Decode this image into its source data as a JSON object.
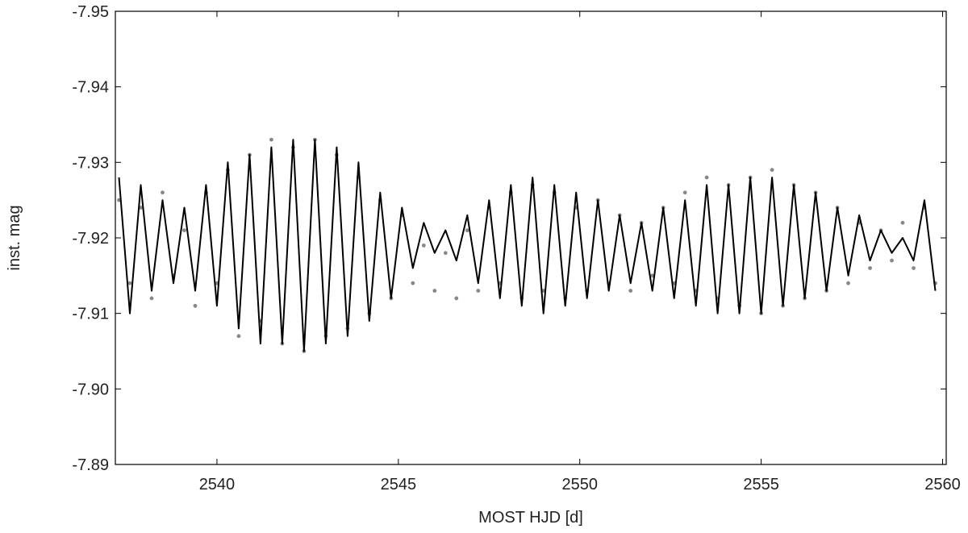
{
  "chart_data": {
    "type": "scatter",
    "xlabel": "MOST HJD [d]",
    "ylabel": "inst. mag",
    "xlim": [
      2537.2,
      2560.1
    ],
    "ylim": [
      -7.95,
      -7.89
    ],
    "y_inverted": true,
    "xticks": [
      2540,
      2545,
      2550,
      2555,
      2560
    ],
    "xtick_labels": [
      "2540",
      "2545",
      "2550",
      "2555",
      "2560"
    ],
    "yticks": [
      -7.95,
      -7.94,
      -7.93,
      -7.92,
      -7.91,
      -7.9,
      -7.89
    ],
    "ytick_labels": [
      "-7.95",
      "-7.94",
      "-7.93",
      "-7.92",
      "-7.91",
      "-7.90",
      "-7.89"
    ],
    "grid": false,
    "series": [
      {
        "kind": "photometry_points",
        "color": "#888888",
        "x": [
          2537.3,
          2537.6,
          2537.9,
          2538.2,
          2538.5,
          2538.8,
          2539.1,
          2539.4,
          2539.7,
          2540.0,
          2540.3,
          2540.6,
          2540.9,
          2541.2,
          2541.5,
          2541.8,
          2542.1,
          2542.4,
          2542.7,
          2543.0,
          2543.3,
          2543.6,
          2543.9,
          2544.2,
          2544.5,
          2544.8,
          2545.1,
          2545.4,
          2545.7,
          2546.0,
          2546.3,
          2546.6,
          2546.9,
          2547.2,
          2547.5,
          2547.8,
          2548.1,
          2548.4,
          2548.7,
          2549.0,
          2549.3,
          2549.6,
          2549.9,
          2550.2,
          2550.5,
          2550.8,
          2551.1,
          2551.4,
          2551.7,
          2552.0,
          2552.3,
          2552.6,
          2552.9,
          2553.2,
          2553.5,
          2553.8,
          2554.1,
          2554.4,
          2554.7,
          2555.0,
          2555.3,
          2555.6,
          2555.9,
          2556.2,
          2556.5,
          2556.8,
          2557.1,
          2557.4,
          2557.7,
          2558.0,
          2558.3,
          2558.6,
          2558.9,
          2559.2,
          2559.5,
          2559.8
        ],
        "y": [
          -7.925,
          -7.914,
          -7.924,
          -7.912,
          -7.926,
          -7.915,
          -7.921,
          -7.911,
          -7.926,
          -7.914,
          -7.929,
          -7.907,
          -7.931,
          -7.909,
          -7.933,
          -7.906,
          -7.932,
          -7.905,
          -7.933,
          -7.907,
          -7.931,
          -7.908,
          -7.928,
          -7.91,
          -7.925,
          -7.912,
          -7.923,
          -7.914,
          -7.919,
          -7.913,
          -7.918,
          -7.912,
          -7.921,
          -7.913,
          -7.924,
          -7.914,
          -7.926,
          -7.912,
          -7.927,
          -7.913,
          -7.926,
          -7.912,
          -7.924,
          -7.913,
          -7.925,
          -7.914,
          -7.923,
          -7.913,
          -7.922,
          -7.915,
          -7.924,
          -7.914,
          -7.926,
          -7.913,
          -7.928,
          -7.912,
          -7.927,
          -7.911,
          -7.928,
          -7.91,
          -7.929,
          -7.911,
          -7.927,
          -7.912,
          -7.926,
          -7.913,
          -7.924,
          -7.914,
          -7.922,
          -7.916,
          -7.921,
          -7.917,
          -7.922,
          -7.916,
          -7.924,
          -7.914
        ]
      },
      {
        "kind": "fit_line",
        "color": "#000000",
        "x": [
          2537.3,
          2537.6,
          2537.9,
          2538.2,
          2538.5,
          2538.8,
          2539.1,
          2539.4,
          2539.7,
          2540.0,
          2540.3,
          2540.6,
          2540.9,
          2541.2,
          2541.5,
          2541.8,
          2542.1,
          2542.4,
          2542.7,
          2543.0,
          2543.3,
          2543.6,
          2543.9,
          2544.2,
          2544.5,
          2544.8,
          2545.1,
          2545.4,
          2545.7,
          2546.0,
          2546.3,
          2546.6,
          2546.9,
          2547.2,
          2547.5,
          2547.8,
          2548.1,
          2548.4,
          2548.7,
          2549.0,
          2549.3,
          2549.6,
          2549.9,
          2550.2,
          2550.5,
          2550.8,
          2551.1,
          2551.4,
          2551.7,
          2552.0,
          2552.3,
          2552.6,
          2552.9,
          2553.2,
          2553.5,
          2553.8,
          2554.1,
          2554.4,
          2554.7,
          2555.0,
          2555.3,
          2555.6,
          2555.9,
          2556.2,
          2556.5,
          2556.8,
          2557.1,
          2557.4,
          2557.7,
          2558.0,
          2558.3,
          2558.6,
          2558.9,
          2559.2,
          2559.5,
          2559.8
        ],
        "y": [
          -7.928,
          -7.91,
          -7.927,
          -7.913,
          -7.925,
          -7.914,
          -7.924,
          -7.913,
          -7.927,
          -7.911,
          -7.93,
          -7.908,
          -7.931,
          -7.906,
          -7.932,
          -7.906,
          -7.933,
          -7.905,
          -7.933,
          -7.906,
          -7.932,
          -7.907,
          -7.93,
          -7.909,
          -7.926,
          -7.912,
          -7.924,
          -7.916,
          -7.922,
          -7.918,
          -7.921,
          -7.917,
          -7.923,
          -7.914,
          -7.925,
          -7.912,
          -7.927,
          -7.911,
          -7.928,
          -7.91,
          -7.927,
          -7.911,
          -7.926,
          -7.912,
          -7.925,
          -7.913,
          -7.923,
          -7.914,
          -7.922,
          -7.913,
          -7.924,
          -7.912,
          -7.925,
          -7.911,
          -7.927,
          -7.91,
          -7.927,
          -7.91,
          -7.928,
          -7.91,
          -7.928,
          -7.911,
          -7.927,
          -7.912,
          -7.926,
          -7.913,
          -7.924,
          -7.915,
          -7.923,
          -7.917,
          -7.921,
          -7.918,
          -7.92,
          -7.917,
          -7.925,
          -7.913
        ]
      }
    ]
  }
}
